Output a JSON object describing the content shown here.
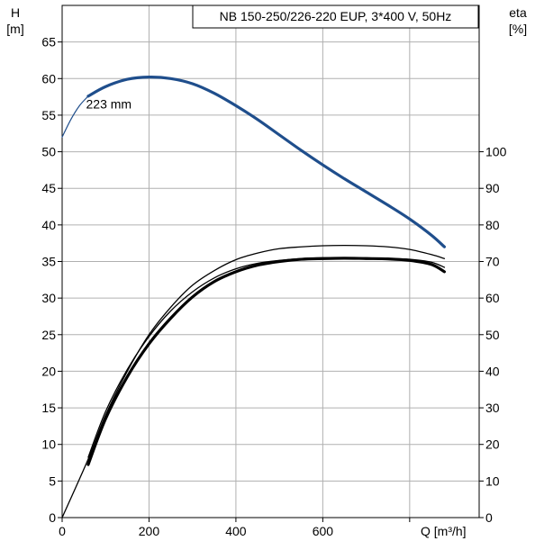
{
  "chart_data": {
    "type": "line",
    "title": "NB 150-250/226-220 EUP, 3*400 V, 50Hz",
    "xlabel": "Q [m³/h]",
    "ylabel_left": [
      "H",
      "[m]"
    ],
    "ylabel_right": [
      "eta",
      "[%]"
    ],
    "xlim": [
      0,
      960
    ],
    "ylim_left": [
      0,
      70
    ],
    "ylim_right": [
      0,
      140
    ],
    "x_ticks": [
      0,
      200,
      400,
      600
    ],
    "y_left_ticks": [
      0,
      5,
      10,
      15,
      20,
      25,
      30,
      35,
      40,
      45,
      50,
      55,
      60,
      65
    ],
    "y_right_ticks": [
      0,
      10,
      20,
      30,
      40,
      50,
      60,
      70,
      80,
      90,
      100
    ],
    "grid": true,
    "colors": {
      "head": "#1f4e8c",
      "efficiency": "#000000"
    },
    "annotations": [
      {
        "text": "223 mm",
        "x": 55,
        "y": 56.5
      }
    ],
    "series": [
      {
        "axis": "left",
        "style": "head-thin",
        "x": [
          0,
          20,
          40,
          60
        ],
        "values": [
          52,
          54.4,
          56.3,
          57.6
        ]
      },
      {
        "axis": "left",
        "style": "head-thick",
        "x": [
          60,
          100,
          150,
          200,
          250,
          300,
          350,
          400,
          450,
          500,
          550,
          600,
          650,
          700,
          750,
          800,
          850,
          880
        ],
        "values": [
          57.6,
          58.9,
          59.9,
          60.2,
          60.0,
          59.3,
          58.0,
          56.3,
          54.4,
          52.3,
          50.2,
          48.2,
          46.3,
          44.5,
          42.7,
          40.8,
          38.6,
          37.0
        ]
      },
      {
        "axis": "right",
        "style": "eta-thin",
        "x": [
          0,
          60,
          100,
          150,
          200,
          250,
          300,
          350,
          400,
          450,
          500,
          550,
          600,
          650,
          700,
          750,
          800,
          850,
          880
        ],
        "values": [
          0,
          16,
          28,
          40,
          50,
          57.5,
          63.5,
          67.5,
          70.5,
          72.3,
          73.5,
          74.0,
          74.3,
          74.4,
          74.3,
          74.0,
          73.3,
          71.9,
          70.8
        ]
      },
      {
        "axis": "right",
        "style": "eta-band-outer",
        "x": [
          60,
          100,
          150,
          200,
          250,
          300,
          350,
          400,
          450,
          500,
          550,
          600,
          650,
          700,
          750,
          800,
          850,
          880
        ],
        "values": [
          16.5,
          29,
          40.5,
          49.5,
          56.5,
          61.7,
          65.5,
          68.0,
          69.5,
          70.3,
          70.8,
          71.0,
          71.0,
          71.0,
          70.8,
          70.6,
          69.8,
          68.4
        ]
      },
      {
        "axis": "right",
        "style": "eta-band-inner",
        "x": [
          60,
          100,
          150,
          200,
          250,
          300,
          350,
          400,
          450,
          500,
          550,
          600,
          650,
          700,
          750,
          800,
          850,
          880
        ],
        "values": [
          14.5,
          27,
          38.5,
          47.5,
          54.5,
          60.3,
          64.5,
          67.2,
          69.0,
          70.0,
          70.6,
          70.8,
          70.9,
          70.8,
          70.7,
          70.3,
          69.2,
          67.2
        ]
      }
    ]
  }
}
